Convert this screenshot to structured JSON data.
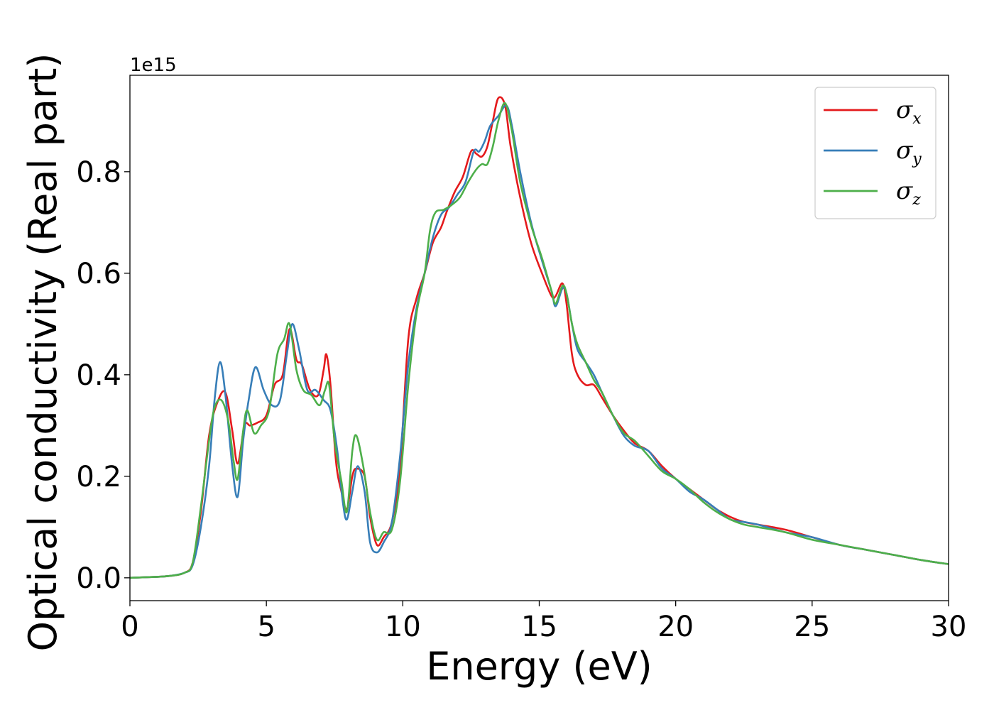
{
  "chart_data": {
    "type": "line",
    "title": "",
    "xlabel": "Energy (eV)",
    "ylabel": "Optical conductivity (Real part)",
    "y_offset_label": "1e15",
    "xlim": [
      0,
      30
    ],
    "ylim": [
      -0.045,
      0.99
    ],
    "x_ticks": [
      0,
      5,
      10,
      15,
      20,
      25,
      30
    ],
    "y_ticks": [
      0.0,
      0.2,
      0.4,
      0.6,
      0.8
    ],
    "grid": false,
    "legend_position": "top-right",
    "series": [
      {
        "name": "σx",
        "symbol": "σ",
        "subscript": "x",
        "color": "#e41a1c",
        "x": [
          0,
          1,
          1.5,
          2.0,
          2.3,
          2.6,
          2.9,
          3.2,
          3.5,
          3.75,
          3.95,
          4.2,
          4.4,
          4.65,
          5.0,
          5.3,
          5.6,
          5.85,
          6.1,
          6.3,
          6.6,
          6.9,
          7.1,
          7.2,
          7.35,
          7.55,
          7.75,
          7.95,
          8.15,
          8.3,
          8.6,
          8.8,
          9.05,
          9.3,
          9.6,
          9.9,
          10.2,
          10.5,
          10.8,
          11.1,
          11.4,
          11.6,
          11.9,
          12.2,
          12.5,
          12.7,
          12.9,
          13.1,
          13.3,
          13.5,
          13.75,
          13.95,
          14.3,
          14.7,
          15.1,
          15.45,
          15.6,
          15.85,
          16.0,
          16.2,
          16.4,
          16.7,
          17.0,
          17.3,
          17.7,
          18.1,
          18.5,
          19.0,
          19.5,
          20.0,
          20.5,
          21.0,
          21.5,
          22.0,
          22.5,
          23.0,
          24.0,
          25.0,
          26.0,
          27.0,
          28.0,
          29.0,
          30.0
        ],
        "values": [
          0,
          0.002,
          0.004,
          0.01,
          0.03,
          0.13,
          0.28,
          0.345,
          0.365,
          0.29,
          0.225,
          0.3,
          0.3,
          0.305,
          0.32,
          0.38,
          0.4,
          0.49,
          0.43,
          0.42,
          0.37,
          0.36,
          0.41,
          0.44,
          0.38,
          0.23,
          0.17,
          0.135,
          0.2,
          0.215,
          0.2,
          0.12,
          0.065,
          0.08,
          0.11,
          0.22,
          0.47,
          0.55,
          0.6,
          0.66,
          0.69,
          0.72,
          0.76,
          0.79,
          0.84,
          0.835,
          0.83,
          0.85,
          0.9,
          0.945,
          0.93,
          0.85,
          0.75,
          0.66,
          0.6,
          0.555,
          0.555,
          0.58,
          0.54,
          0.44,
          0.4,
          0.38,
          0.38,
          0.355,
          0.32,
          0.29,
          0.265,
          0.25,
          0.22,
          0.195,
          0.175,
          0.155,
          0.135,
          0.12,
          0.11,
          0.105,
          0.095,
          0.08,
          0.065,
          0.055,
          0.045,
          0.035,
          0.027
        ]
      },
      {
        "name": "σy",
        "symbol": "σ",
        "subscript": "y",
        "color": "#377eb8",
        "x": [
          0,
          1,
          1.5,
          2.0,
          2.3,
          2.6,
          2.9,
          3.1,
          3.3,
          3.5,
          3.75,
          3.95,
          4.15,
          4.35,
          4.6,
          4.9,
          5.2,
          5.5,
          5.75,
          5.95,
          6.2,
          6.5,
          6.8,
          7.1,
          7.35,
          7.6,
          7.8,
          7.95,
          8.15,
          8.35,
          8.6,
          8.8,
          9.05,
          9.3,
          9.6,
          9.9,
          10.2,
          10.5,
          10.8,
          11.1,
          11.4,
          11.7,
          12.0,
          12.3,
          12.6,
          12.8,
          13.0,
          13.2,
          13.5,
          13.8,
          14.0,
          14.3,
          14.7,
          15.1,
          15.45,
          15.6,
          15.85,
          16.0,
          16.2,
          16.4,
          16.7,
          17.0,
          17.3,
          17.7,
          18.1,
          18.5,
          19.0,
          19.5,
          20.0,
          20.5,
          21.0,
          21.5,
          22.0,
          22.5,
          23.0,
          24.0,
          25.0,
          26.0,
          27.0,
          28.0,
          29.0,
          30.0
        ],
        "values": [
          0,
          0.002,
          0.004,
          0.01,
          0.025,
          0.1,
          0.22,
          0.35,
          0.425,
          0.36,
          0.22,
          0.16,
          0.27,
          0.35,
          0.415,
          0.37,
          0.34,
          0.35,
          0.44,
          0.5,
          0.45,
          0.37,
          0.37,
          0.35,
          0.33,
          0.25,
          0.15,
          0.115,
          0.17,
          0.22,
          0.17,
          0.07,
          0.05,
          0.07,
          0.11,
          0.24,
          0.42,
          0.53,
          0.6,
          0.67,
          0.715,
          0.73,
          0.755,
          0.78,
          0.84,
          0.84,
          0.86,
          0.89,
          0.91,
          0.93,
          0.89,
          0.8,
          0.7,
          0.625,
          0.565,
          0.535,
          0.57,
          0.56,
          0.5,
          0.45,
          0.425,
          0.4,
          0.365,
          0.32,
          0.28,
          0.26,
          0.25,
          0.215,
          0.195,
          0.17,
          0.155,
          0.135,
          0.115,
          0.11,
          0.105,
          0.09,
          0.08,
          0.065,
          0.055,
          0.045,
          0.035,
          0.027
        ]
      },
      {
        "name": "σz",
        "symbol": "σ",
        "subscript": "z",
        "color": "#4daf4a",
        "x": [
          0,
          1,
          1.5,
          2.0,
          2.3,
          2.6,
          2.9,
          3.1,
          3.35,
          3.6,
          3.8,
          3.95,
          4.15,
          4.3,
          4.55,
          4.8,
          5.1,
          5.4,
          5.65,
          5.85,
          6.1,
          6.35,
          6.65,
          6.95,
          7.15,
          7.3,
          7.5,
          7.75,
          7.95,
          8.15,
          8.3,
          8.55,
          8.8,
          9.05,
          9.3,
          9.6,
          9.9,
          10.2,
          10.5,
          10.8,
          11.0,
          11.2,
          11.5,
          11.8,
          12.1,
          12.4,
          12.7,
          12.9,
          13.1,
          13.3,
          13.5,
          13.75,
          14.0,
          14.3,
          14.7,
          15.1,
          15.45,
          15.6,
          15.85,
          16.0,
          16.2,
          16.4,
          16.7,
          17.0,
          17.3,
          17.7,
          18.1,
          18.5,
          19.0,
          19.5,
          20.0,
          20.5,
          21.0,
          21.5,
          22.0,
          22.5,
          23.0,
          24.0,
          25.0,
          26.0,
          27.0,
          28.0,
          29.0,
          30.0
        ],
        "values": [
          0,
          0.002,
          0.004,
          0.01,
          0.03,
          0.14,
          0.27,
          0.335,
          0.35,
          0.31,
          0.23,
          0.195,
          0.29,
          0.33,
          0.285,
          0.3,
          0.33,
          0.44,
          0.47,
          0.5,
          0.41,
          0.37,
          0.36,
          0.34,
          0.37,
          0.38,
          0.27,
          0.19,
          0.13,
          0.25,
          0.28,
          0.22,
          0.13,
          0.075,
          0.09,
          0.095,
          0.19,
          0.38,
          0.52,
          0.6,
          0.685,
          0.72,
          0.725,
          0.735,
          0.75,
          0.78,
          0.805,
          0.815,
          0.815,
          0.85,
          0.9,
          0.935,
          0.88,
          0.78,
          0.695,
          0.63,
          0.565,
          0.54,
          0.575,
          0.56,
          0.5,
          0.46,
          0.425,
          0.39,
          0.365,
          0.32,
          0.285,
          0.27,
          0.24,
          0.21,
          0.195,
          0.175,
          0.15,
          0.13,
          0.115,
          0.105,
          0.1,
          0.09,
          0.075,
          0.065,
          0.055,
          0.045,
          0.035,
          0.027
        ]
      }
    ]
  }
}
